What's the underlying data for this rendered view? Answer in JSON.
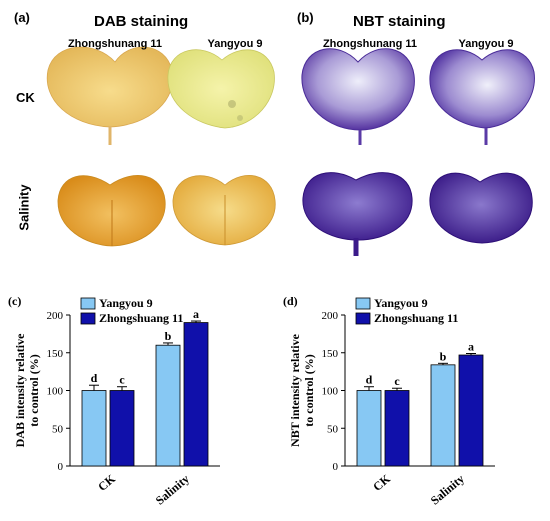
{
  "figure": {
    "panel_a": {
      "letter": "(a)",
      "title": "DAB staining",
      "col_labels": [
        "Zhongshunang 11",
        "Yangyou 9"
      ]
    },
    "panel_b": {
      "letter": "(b)",
      "title": "NBT staining",
      "col_labels": [
        "Zhongshunang 11",
        "Yangyou 9"
      ]
    },
    "row_labels": [
      "CK",
      "Salinity"
    ],
    "colors": {
      "dab_ck": "#f0cf79",
      "dab_ck_light": "#f4f0a5",
      "dab_salt": "#e8a52c",
      "nbt": "#5b3aa6",
      "nbt_dark": "#3f1f8e",
      "nbt_light": "#e6e6f5",
      "bar_yangyou": "#87c8f3",
      "bar_zhong": "#1010aa"
    }
  },
  "chart_data": [
    {
      "type": "bar",
      "panel": "(c)",
      "categories": [
        "CK",
        "Salinity"
      ],
      "series": [
        {
          "name": "Yangyou 9",
          "values": [
            100,
            160
          ],
          "errors": [
            7,
            3
          ],
          "letters": [
            "d",
            "b"
          ],
          "color": "#87c8f3"
        },
        {
          "name": "Zhongshuang 11",
          "values": [
            100,
            190
          ],
          "errors": [
            5,
            2
          ],
          "letters": [
            "c",
            "a"
          ],
          "color": "#1010aa"
        }
      ],
      "ylabel": "DAB intensity relative to control (%)",
      "ylabel_lines": [
        "DAB intensity relative",
        "to control (%)"
      ],
      "ylim": [
        0,
        200
      ],
      "yticks": [
        "0",
        "50",
        "100",
        "150",
        "200"
      ]
    },
    {
      "type": "bar",
      "panel": "(d)",
      "categories": [
        "CK",
        "Salinity"
      ],
      "series": [
        {
          "name": "Yangyou 9",
          "values": [
            100,
            134
          ],
          "errors": [
            5,
            2
          ],
          "letters": [
            "d",
            "b"
          ],
          "color": "#87c8f3"
        },
        {
          "name": "Zhongshuang 11",
          "values": [
            100,
            147
          ],
          "errors": [
            3,
            2
          ],
          "letters": [
            "c",
            "a"
          ],
          "color": "#1010aa"
        }
      ],
      "ylabel": "NBT intensity relative to control (%)",
      "ylabel_lines": [
        "NBT intensity relative",
        "to control (%)"
      ],
      "ylim": [
        0,
        200
      ],
      "yticks": [
        "0",
        "50",
        "100",
        "150",
        "200"
      ]
    }
  ]
}
